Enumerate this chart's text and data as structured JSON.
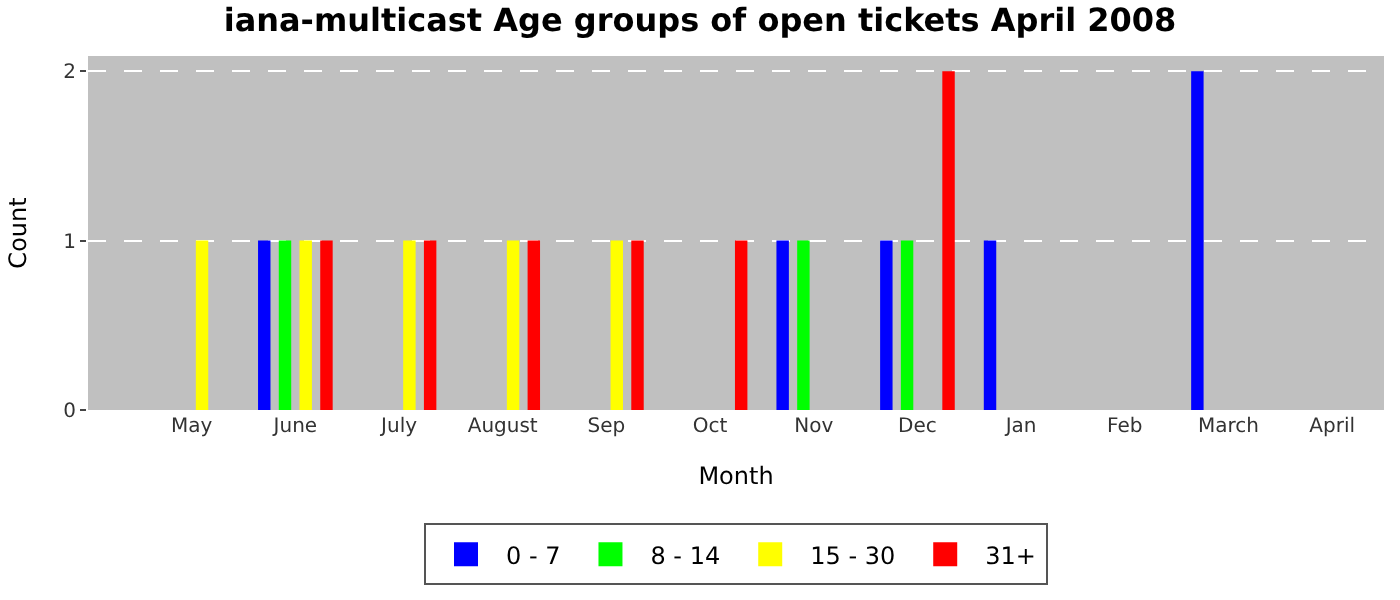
{
  "chart_data": {
    "type": "bar",
    "title": "iana-multicast Age groups of open tickets April 2008",
    "xlabel": "Month",
    "ylabel": "Count",
    "categories": [
      "May",
      "June",
      "July",
      "August",
      "Sep",
      "Oct",
      "Nov",
      "Dec",
      "Jan",
      "Feb",
      "March",
      "April"
    ],
    "series": [
      {
        "name": "0 - 7",
        "color": "#0000ff",
        "values": [
          0,
          1,
          0,
          0,
          0,
          0,
          1,
          1,
          1,
          0,
          2,
          0
        ]
      },
      {
        "name": "8 - 14",
        "color": "#00ff00",
        "values": [
          0,
          1,
          0,
          0,
          0,
          0,
          1,
          1,
          0,
          0,
          0,
          0
        ]
      },
      {
        "name": "15 - 30",
        "color": "#ffff00",
        "values": [
          1,
          1,
          1,
          1,
          1,
          0,
          0,
          0,
          0,
          0,
          0,
          0
        ]
      },
      {
        "name": "31+",
        "color": "#ff0000",
        "values": [
          0,
          1,
          1,
          1,
          1,
          1,
          0,
          2,
          0,
          0,
          0,
          0
        ]
      }
    ],
    "ylim": [
      0,
      2.09
    ],
    "yticks": [
      0,
      1,
      2
    ],
    "grid": "y",
    "legend": "bottom"
  }
}
